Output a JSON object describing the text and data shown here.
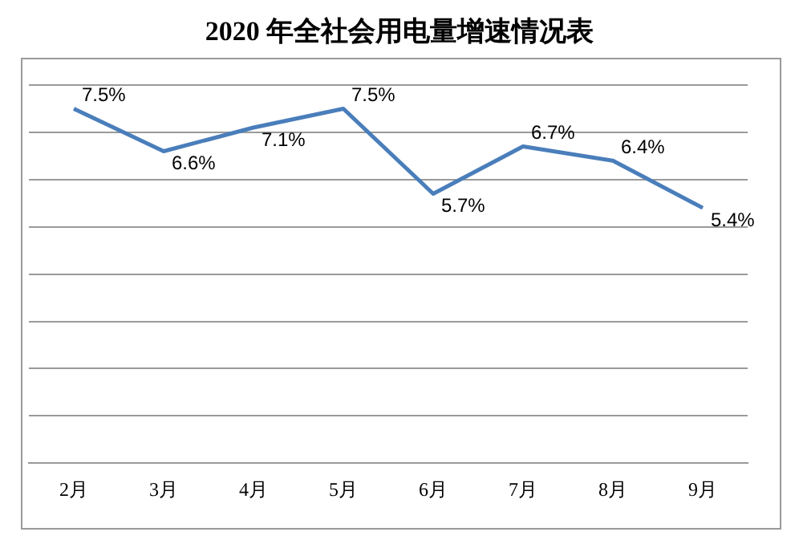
{
  "chart_data": {
    "type": "line",
    "title": "2020 年全社会用电量增速情况表",
    "categories": [
      "2月",
      "3月",
      "4月",
      "5月",
      "6月",
      "7月",
      "8月",
      "9月"
    ],
    "series": [
      {
        "color": "#4a7ebb",
        "values": [
          7.5,
          6.6,
          7.1,
          7.5,
          5.7,
          6.7,
          6.4,
          5.4
        ]
      }
    ],
    "value_labels": [
      "7.5%",
      "6.6%",
      "7.1%",
      "7.5%",
      "5.7%",
      "6.7%",
      "6.4%",
      "5.4%"
    ],
    "ylim": [
      0,
      8
    ],
    "yticks": [
      {
        "value": 0,
        "label": null
      },
      {
        "value": 1,
        "label": null
      },
      {
        "value": 2,
        "label": null
      },
      {
        "value": 3,
        "label": null
      },
      {
        "value": 4,
        "label": null
      },
      {
        "value": 5,
        "label": null
      },
      {
        "value": 6,
        "label": null
      },
      {
        "value": 7,
        "label": null
      },
      {
        "value": 8,
        "label": null
      }
    ],
    "data_labels": true,
    "grid": "y",
    "marker": "none",
    "line_style": "solid",
    "tick_labels": "x",
    "legend": false
  }
}
